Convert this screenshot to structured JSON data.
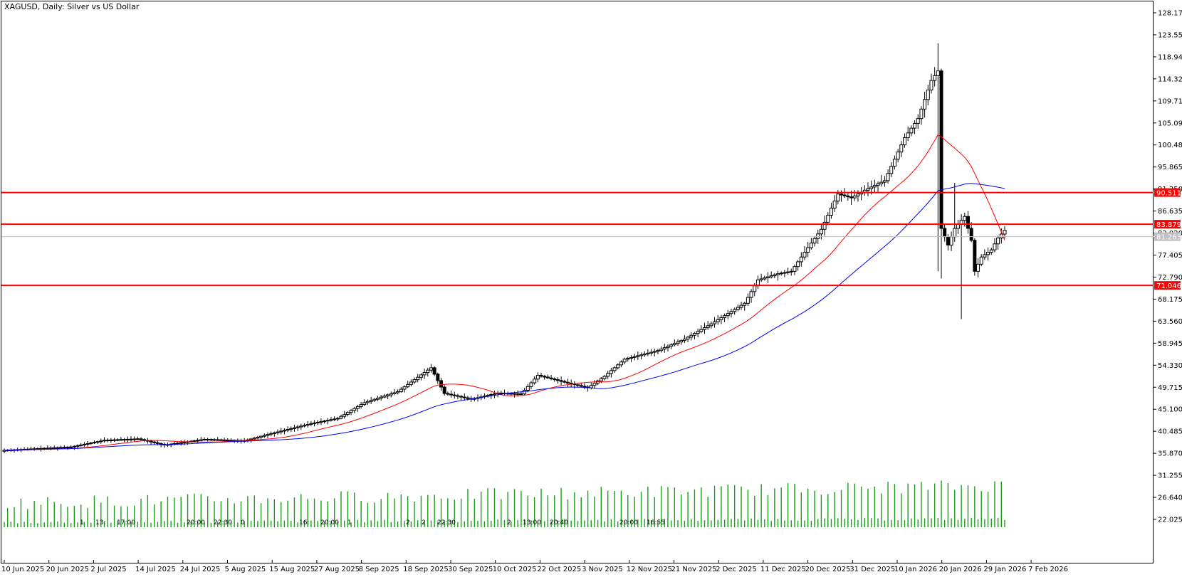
{
  "window": {
    "title": "XAGUSD, Daily:  Silver vs US Dollar"
  },
  "chart_data": {
    "type": "candlestick",
    "symbol": "XAGUSD",
    "timeframe": "Daily",
    "description": "Silver vs US Dollar",
    "ylim": [
      17.0,
      130.0
    ],
    "price_axis_labels": [
      "128.170",
      "123.555",
      "118.940",
      "114.325",
      "109.710",
      "105.095",
      "100.480",
      "95.865",
      "91.250",
      "86.635",
      "82.020",
      "77.405",
      "72.790",
      "68.175",
      "63.560",
      "58.945",
      "54.330",
      "49.715",
      "45.100",
      "40.485",
      "35.870",
      "31.255",
      "26.640",
      "22.025"
    ],
    "date_axis_labels": [
      "10 Jun 2025",
      "20 Jun 2025",
      "2 Jul 2025",
      "14 Jul 2025",
      "24 Jul 2025",
      "5 Aug 2025",
      "15 Aug 2025",
      "27 Aug 2025",
      "8 Sep 2025",
      "18 Sep 2025",
      "30 Sep 2025",
      "10 Oct 2025",
      "22 Oct 2025",
      "3 Nov 2025",
      "12 Nov 2025",
      "21 Nov 2025",
      "2 Dec 2025",
      "11 Dec 2025",
      "20 Dec 2025",
      "31 Dec 2025",
      "10 Jan 2026",
      "20 Jan 2026",
      "29 Jan 2026",
      "7 Feb 2026"
    ],
    "horizontal_lines": [
      {
        "price": 90.511,
        "label": "90.511",
        "color": "#ff0000"
      },
      {
        "price": 83.879,
        "label": "83.879",
        "color": "#ff0000"
      },
      {
        "price": 71.046,
        "label": "71.046",
        "color": "#ff0000"
      }
    ],
    "current_price": {
      "price": 81.263,
      "label": "81.263",
      "color": "#c0c0c0"
    },
    "volume_color": "#1a9e1a",
    "ma_fast_color": "#ff0000",
    "ma_slow_color": "#0000ff",
    "period_markers": [
      "1",
      "13:",
      "17:00",
      "20:00",
      "22:30",
      "0",
      "16:",
      "20:00",
      "1",
      "2",
      "2",
      "22:30",
      "2",
      "13:00",
      "20:40",
      "20:00",
      "16:55"
    ]
  }
}
